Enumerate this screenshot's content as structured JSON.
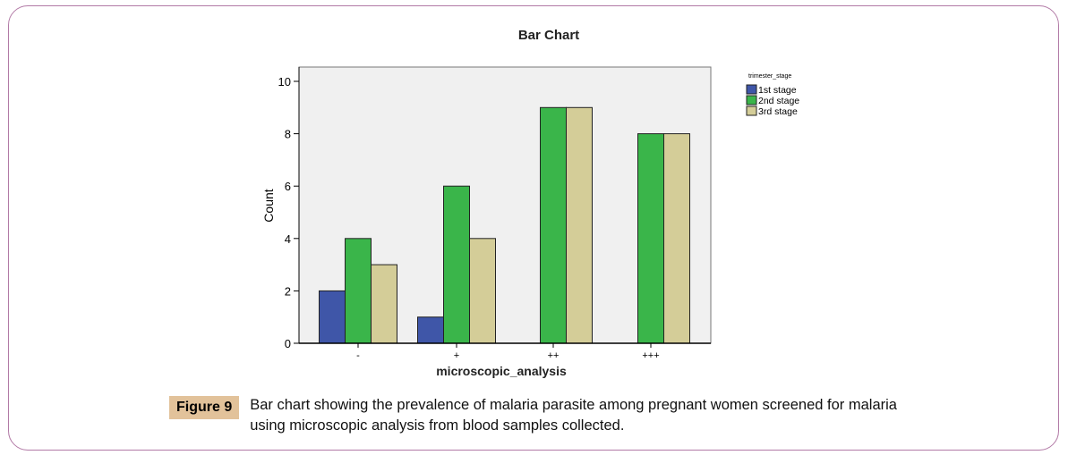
{
  "chart_data": {
    "type": "bar",
    "title": "Bar Chart",
    "xlabel": "microscopic_analysis",
    "ylabel": "Count",
    "ylim": [
      0,
      10.5
    ],
    "yticks": [
      0,
      2,
      4,
      6,
      8,
      10
    ],
    "categories": [
      "-",
      "+",
      "++",
      "+++"
    ],
    "legend_title": "trimester_stage",
    "legend_position": "top-right",
    "series": [
      {
        "name": "1st  stage",
        "color": "#3f56a8",
        "values": [
          2,
          1,
          0,
          0
        ]
      },
      {
        "name": "2nd stage",
        "color": "#3ab54a",
        "values": [
          4,
          6,
          9,
          8
        ]
      },
      {
        "name": "3rd  stage",
        "color": "#d4cd98",
        "values": [
          3,
          4,
          9,
          8
        ]
      }
    ],
    "plot_background": "#f0f0f0"
  },
  "caption": {
    "label": "Figure 9",
    "text": "Bar chart showing the prevalence of malaria parasite among pregnant women screened for malaria using microscopic analysis from blood samples collected."
  }
}
